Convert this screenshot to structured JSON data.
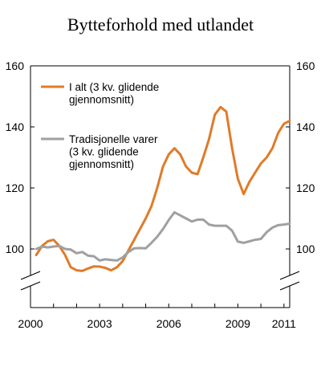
{
  "chart_data": {
    "type": "line",
    "title": "Bytteforhold med utlandet",
    "xlabel": "",
    "ylabel": "",
    "x_tick_labels": [
      "2000",
      "2003",
      "2006",
      "2009",
      "2011"
    ],
    "x_ticks": [
      2000,
      2003,
      2006,
      2009,
      2011
    ],
    "y_ticks": [
      100,
      120,
      140,
      160
    ],
    "ylim": [
      90,
      160
    ],
    "xlim": [
      2000,
      2011.25
    ],
    "axis_break": true,
    "grid": false,
    "colors": {
      "I alt": "#e07b28",
      "Tradisjonelle": "#a0a0a0"
    },
    "series": [
      {
        "name": "I alt (3 kv. glidende gjennomsnitt)",
        "legend_lines": [
          "I alt (3 kv. glidende",
          "gjennomsnitt)"
        ],
        "color": "#e07b28",
        "x": [
          2000.25,
          2000.5,
          2000.75,
          2001.0,
          2001.25,
          2001.5,
          2001.75,
          2002.0,
          2002.25,
          2002.5,
          2002.75,
          2003.0,
          2003.25,
          2003.5,
          2003.75,
          2004.0,
          2004.25,
          2004.5,
          2004.75,
          2005.0,
          2005.25,
          2005.5,
          2005.75,
          2006.0,
          2006.25,
          2006.5,
          2006.75,
          2007.0,
          2007.25,
          2007.5,
          2007.75,
          2008.0,
          2008.25,
          2008.5,
          2008.75,
          2009.0,
          2009.25,
          2009.5,
          2009.75,
          2010.0,
          2010.25,
          2010.5,
          2010.75,
          2011.0,
          2011.25
        ],
        "values": [
          98,
          101,
          102.5,
          103,
          101,
          98,
          94,
          93,
          92.8,
          93.6,
          94.3,
          94.2,
          93.8,
          93,
          94,
          96,
          99.5,
          103,
          106.5,
          110,
          114,
          120,
          127,
          131,
          133,
          131,
          127,
          125,
          124.5,
          130,
          136,
          144,
          146.5,
          145,
          133,
          123,
          118,
          122,
          125,
          128,
          130,
          133,
          138,
          141,
          142
        ]
      },
      {
        "name": "Tradisjonelle varer (3 kv. glidende gjennomsnitt)",
        "legend_lines": [
          "Tradisjonelle varer",
          "(3 kv. glidende",
          "gjennomsnitt)"
        ],
        "color": "#a0a0a0",
        "x": [
          2000.25,
          2000.5,
          2000.75,
          2001.0,
          2001.25,
          2001.5,
          2001.75,
          2002.0,
          2002.25,
          2002.5,
          2002.75,
          2003.0,
          2003.25,
          2003.5,
          2003.75,
          2004.0,
          2004.25,
          2004.5,
          2004.75,
          2005.0,
          2005.25,
          2005.5,
          2005.75,
          2006.0,
          2006.25,
          2006.5,
          2006.75,
          2007.0,
          2007.25,
          2007.5,
          2007.75,
          2008.0,
          2008.25,
          2008.5,
          2008.75,
          2009.0,
          2009.25,
          2009.5,
          2009.75,
          2010.0,
          2010.25,
          2010.5,
          2010.75,
          2011.0,
          2011.25
        ],
        "values": [
          100,
          100.8,
          100.5,
          100.8,
          101,
          100,
          99.8,
          98.6,
          99,
          97.8,
          97.6,
          96.2,
          96.6,
          96.4,
          96.2,
          97.2,
          99,
          100.2,
          100.3,
          100.2,
          102,
          104,
          106.5,
          109.5,
          112,
          111,
          110,
          109,
          109.6,
          109.6,
          108,
          107.6,
          107.6,
          107.6,
          106,
          102.4,
          102,
          102.5,
          103,
          103.3,
          105.5,
          107,
          107.8,
          108,
          108.3
        ]
      }
    ]
  }
}
